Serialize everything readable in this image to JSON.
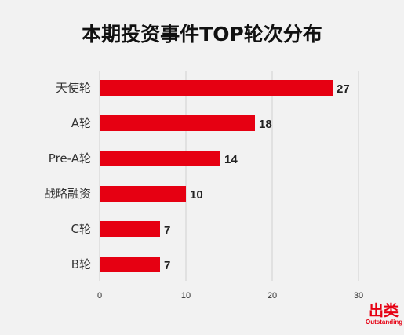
{
  "chart_data": {
    "type": "bar",
    "orientation": "horizontal",
    "title": "本期投资事件TOP轮次分布",
    "categories": [
      "天使轮",
      "A轮",
      "Pre-A轮",
      "战略融资",
      "C轮",
      "B轮"
    ],
    "values": [
      27,
      18,
      14,
      10,
      7,
      7
    ],
    "xlim": [
      0,
      30
    ],
    "xticks": [
      "0",
      "10",
      "20",
      "30"
    ],
    "grid": true,
    "bar_color": "#e60012",
    "show_value_labels": true
  },
  "logo": {
    "text_cn": "出类",
    "text_en": "Outstanding",
    "color": "#e60012"
  }
}
